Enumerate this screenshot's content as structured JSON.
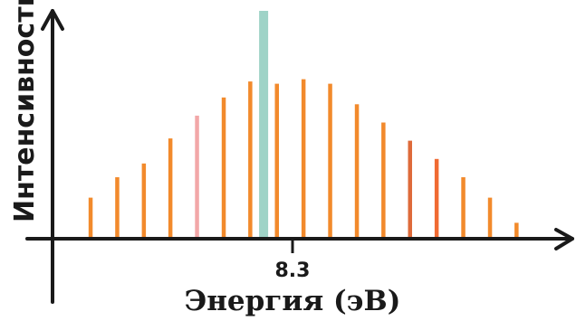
{
  "chart_data": {
    "type": "bar",
    "xlabel": "Энергия (эВ)",
    "ylabel": "Интенсивность",
    "x_tick": {
      "value": 8.3,
      "label": "8.3"
    },
    "ylim": [
      0,
      1
    ],
    "x": [
      1,
      2,
      3,
      4,
      5,
      6,
      7,
      7.5,
      8,
      9,
      10,
      11,
      12,
      13,
      14,
      15,
      16,
      17
    ],
    "values": [
      0.18,
      0.27,
      0.33,
      0.44,
      0.54,
      0.62,
      0.69,
      1.0,
      0.68,
      0.7,
      0.68,
      0.59,
      0.51,
      0.43,
      0.35,
      0.27,
      0.18,
      0.07
    ],
    "colors": [
      "#f28a2c",
      "#f28a2c",
      "#f28a2c",
      "#f28a2c",
      "#f2a7a8",
      "#f28a2c",
      "#f28a2c",
      "#9fd3c7",
      "#f28a2c",
      "#f28a2c",
      "#f28a2c",
      "#f28a2c",
      "#f28a2c",
      "#de6a3a",
      "#f06a32",
      "#f28a2c",
      "#f28a2c",
      "#f28a2c"
    ],
    "grid": false,
    "legend": "none"
  }
}
